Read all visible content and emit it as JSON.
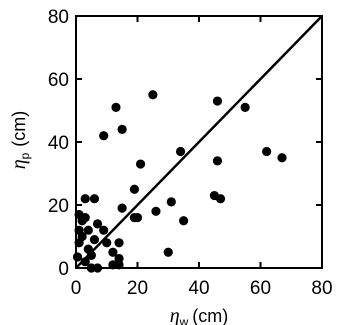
{
  "chart_data": {
    "type": "scatter",
    "title": "",
    "xlabel": {
      "symbol": "η",
      "subscript": "w",
      "unit": "(cm)"
    },
    "ylabel": {
      "symbol": "η",
      "subscript": "p",
      "unit": "(cm)"
    },
    "xlim": [
      0,
      80
    ],
    "ylim": [
      0,
      80
    ],
    "xticks": [
      0,
      20,
      40,
      60,
      80
    ],
    "yticks": [
      0,
      20,
      40,
      60,
      80
    ],
    "grid": false,
    "legend": "none",
    "marker_color": "#000000",
    "reference_line": {
      "type": "identity",
      "from": [
        0,
        0
      ],
      "to": [
        80,
        80
      ]
    },
    "points": [
      {
        "x": 0.5,
        "y": 3.5
      },
      {
        "x": 1,
        "y": 8
      },
      {
        "x": 1,
        "y": 12
      },
      {
        "x": 1,
        "y": 17
      },
      {
        "x": 2,
        "y": 10
      },
      {
        "x": 2,
        "y": 15
      },
      {
        "x": 3,
        "y": 2
      },
      {
        "x": 3,
        "y": 16
      },
      {
        "x": 3,
        "y": 22
      },
      {
        "x": 4,
        "y": 6
      },
      {
        "x": 4,
        "y": 12
      },
      {
        "x": 5,
        "y": 4
      },
      {
        "x": 5,
        "y": 0
      },
      {
        "x": 6,
        "y": 9
      },
      {
        "x": 6,
        "y": 22
      },
      {
        "x": 7,
        "y": 0
      },
      {
        "x": 7,
        "y": 14
      },
      {
        "x": 9,
        "y": 12
      },
      {
        "x": 9,
        "y": 42
      },
      {
        "x": 10,
        "y": 8
      },
      {
        "x": 12,
        "y": 1
      },
      {
        "x": 12,
        "y": 5
      },
      {
        "x": 13,
        "y": 51
      },
      {
        "x": 14,
        "y": 8
      },
      {
        "x": 14,
        "y": 3
      },
      {
        "x": 14,
        "y": 1
      },
      {
        "x": 15,
        "y": 44
      },
      {
        "x": 15,
        "y": 19
      },
      {
        "x": 19,
        "y": 16
      },
      {
        "x": 19,
        "y": 25
      },
      {
        "x": 20,
        "y": 16
      },
      {
        "x": 21,
        "y": 33
      },
      {
        "x": 25,
        "y": 55
      },
      {
        "x": 26,
        "y": 18
      },
      {
        "x": 30,
        "y": 5
      },
      {
        "x": 31,
        "y": 21
      },
      {
        "x": 34,
        "y": 37
      },
      {
        "x": 35,
        "y": 15
      },
      {
        "x": 45,
        "y": 23
      },
      {
        "x": 46,
        "y": 53
      },
      {
        "x": 46,
        "y": 34
      },
      {
        "x": 47,
        "y": 22
      },
      {
        "x": 55,
        "y": 51
      },
      {
        "x": 62,
        "y": 37
      },
      {
        "x": 67,
        "y": 35
      }
    ]
  }
}
